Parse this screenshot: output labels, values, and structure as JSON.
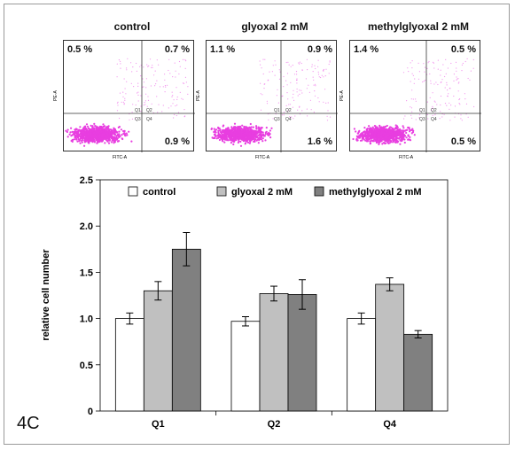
{
  "flow_panels": [
    {
      "title": "control",
      "q_ul": "0.5 %",
      "q_ur": "0.7 %",
      "q_lr": "0.9 %",
      "x_axis": "FITC-A",
      "y_axis": "PE-A",
      "quadrants": [
        "Q1",
        "Q2",
        "Q3",
        "Q4"
      ]
    },
    {
      "title": "glyoxal 2 mM",
      "q_ul": "1.1 %",
      "q_ur": "0.9 %",
      "q_lr": "1.6 %",
      "x_axis": "FITC-A",
      "y_axis": "PE-A",
      "quadrants": [
        "Q1",
        "Q2",
        "Q3",
        "Q4"
      ]
    },
    {
      "title": "methylglyoxal 2 mM",
      "q_ul": "1.4 %",
      "q_ur": "0.5 %",
      "q_lr": "0.5 %",
      "x_axis": "FITC-A",
      "y_axis": "PE-A",
      "quadrants": [
        "Q1",
        "Q2",
        "Q3",
        "Q4"
      ]
    }
  ],
  "panel_label": "4C",
  "colors": {
    "dots": "#e83ee0",
    "control": "#ffffff",
    "glyoxal": "#c0c0c0",
    "methylglyoxal": "#808080",
    "axis": "#000000"
  },
  "chart_data": {
    "type": "bar",
    "categories": [
      "Q1",
      "Q2",
      "Q4"
    ],
    "series": [
      {
        "name": "control",
        "values": [
          1.0,
          0.97,
          1.0
        ],
        "errors": [
          0.06,
          0.05,
          0.06
        ]
      },
      {
        "name": "glyoxal 2 mM",
        "values": [
          1.3,
          1.27,
          1.37
        ],
        "errors": [
          0.1,
          0.08,
          0.07
        ]
      },
      {
        "name": "methylglyoxal 2 mM",
        "values": [
          1.75,
          1.26,
          0.83
        ],
        "errors": [
          0.18,
          0.16,
          0.04
        ]
      }
    ],
    "ylabel": "relative cell number",
    "xlabel": "",
    "ylim": [
      0,
      2.5
    ],
    "yticks": [
      "0",
      "0.5",
      "1.0",
      "1.5",
      "2.0",
      "2.5"
    ],
    "legend_position": "top",
    "grid": false
  }
}
